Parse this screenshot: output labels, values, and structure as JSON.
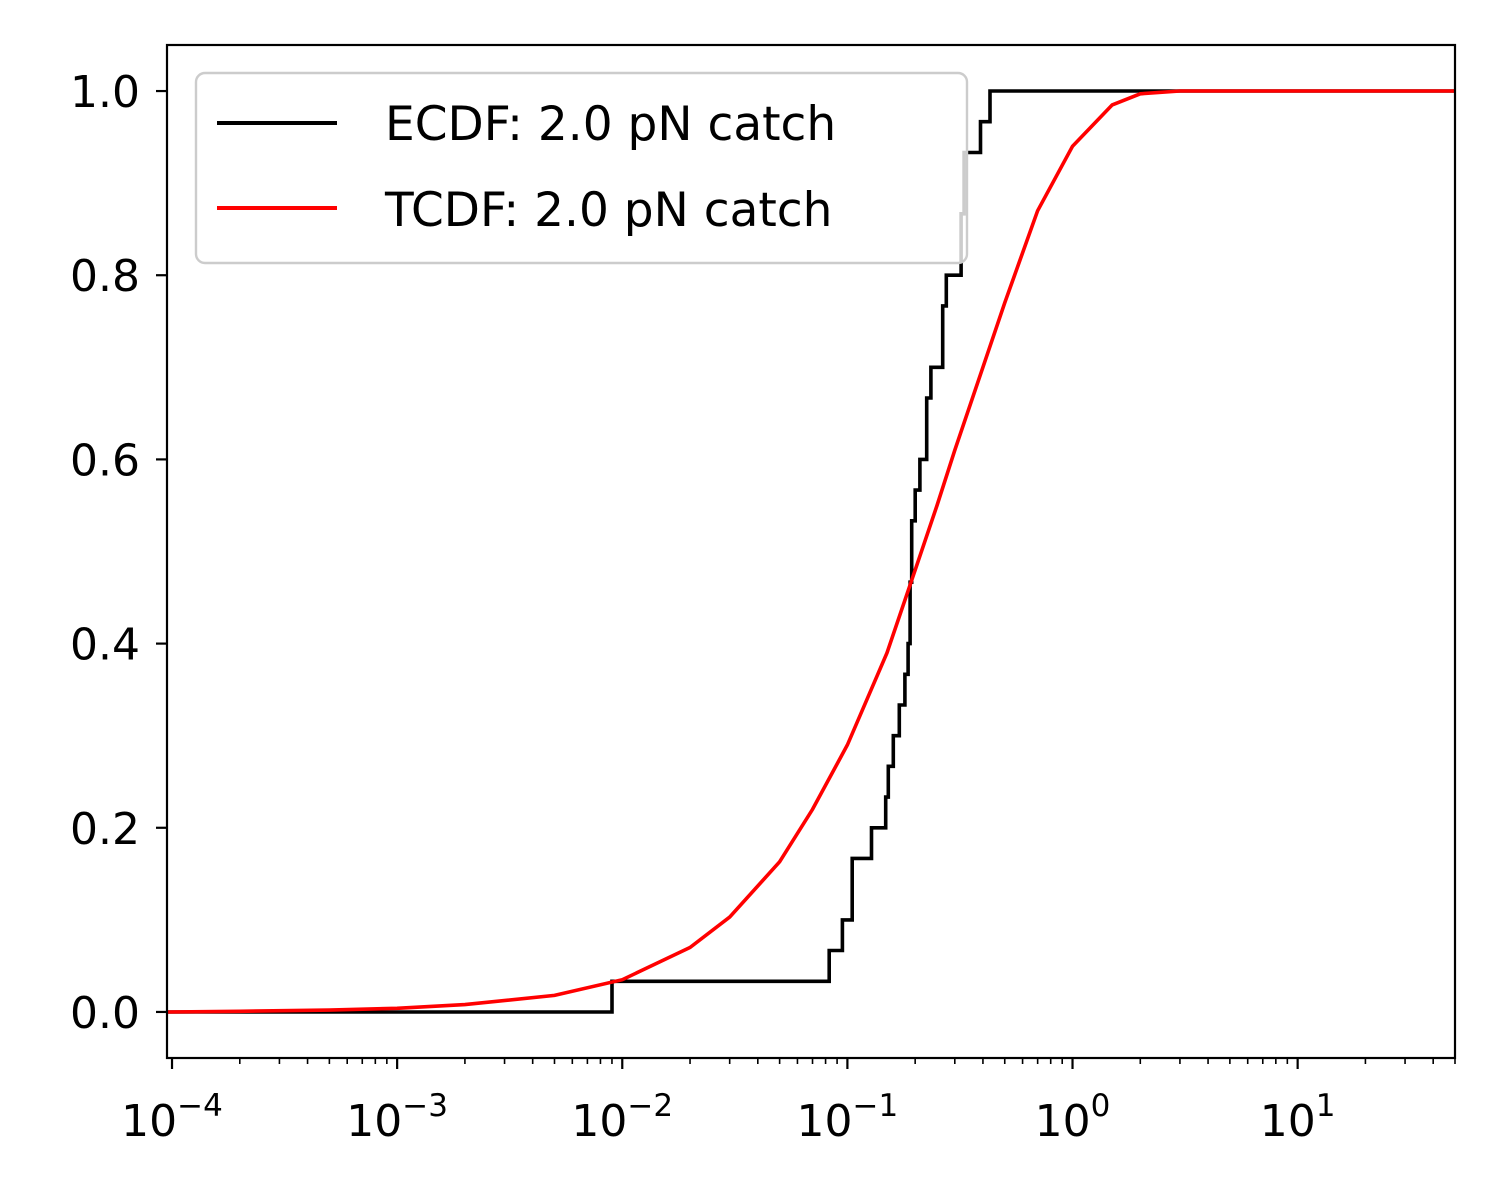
{
  "chart_data": {
    "type": "line",
    "xscale": "log",
    "xlim": [
      9.5e-05,
      50
    ],
    "ylim": [
      -0.05,
      1.05
    ],
    "x_ticks": [
      {
        "value": 0.0001,
        "base": "10",
        "exp": "−4"
      },
      {
        "value": 0.001,
        "base": "10",
        "exp": "−3"
      },
      {
        "value": 0.01,
        "base": "10",
        "exp": "−2"
      },
      {
        "value": 0.1,
        "base": "10",
        "exp": "−1"
      },
      {
        "value": 1,
        "base": "10",
        "exp": "0"
      },
      {
        "value": 10,
        "base": "10",
        "exp": "1"
      }
    ],
    "y_ticks": [
      {
        "value": 0.0,
        "label": "0.0"
      },
      {
        "value": 0.2,
        "label": "0.2"
      },
      {
        "value": 0.4,
        "label": "0.4"
      },
      {
        "value": 0.6,
        "label": "0.6"
      },
      {
        "value": 0.8,
        "label": "0.8"
      },
      {
        "value": 1.0,
        "label": "1.0"
      }
    ],
    "grid": false,
    "legend_position": "upper-left",
    "series": [
      {
        "name": "ECDF: 2.0 pN catch",
        "style": "step",
        "color": "#000000",
        "x": [
          9.5e-05,
          0.009,
          0.009,
          0.083,
          0.083,
          0.095,
          0.095,
          0.105,
          0.105,
          0.128,
          0.128,
          0.148,
          0.148,
          0.152,
          0.152,
          0.16,
          0.16,
          0.17,
          0.17,
          0.18,
          0.18,
          0.186,
          0.186,
          0.19,
          0.19,
          0.193,
          0.193,
          0.2,
          0.2,
          0.21,
          0.21,
          0.225,
          0.225,
          0.235,
          0.235,
          0.265,
          0.265,
          0.275,
          0.275,
          0.32,
          0.32,
          0.33,
          0.33,
          0.39,
          0.39,
          0.43,
          0.43,
          50
        ],
        "y": [
          0.0,
          0.0,
          0.0333,
          0.0333,
          0.0667,
          0.0667,
          0.1,
          0.1,
          0.1667,
          0.1667,
          0.2,
          0.2,
          0.2333,
          0.2333,
          0.2667,
          0.2667,
          0.3,
          0.3,
          0.3333,
          0.3333,
          0.3667,
          0.3667,
          0.4,
          0.4,
          0.4667,
          0.4667,
          0.5333,
          0.5333,
          0.5667,
          0.5667,
          0.6,
          0.6,
          0.6667,
          0.6667,
          0.7,
          0.7,
          0.7667,
          0.7667,
          0.8,
          0.8,
          0.8667,
          0.8667,
          0.9333,
          0.9333,
          0.9667,
          0.9667,
          1.0,
          1.0
        ]
      },
      {
        "name": "TCDF: 2.0 pN catch",
        "style": "line",
        "color": "#ff0000",
        "x": [
          9.5e-05,
          0.0002,
          0.0005,
          0.001,
          0.002,
          0.005,
          0.01,
          0.02,
          0.03,
          0.05,
          0.07,
          0.1,
          0.15,
          0.2,
          0.25,
          0.3,
          0.4,
          0.5,
          0.7,
          1.0,
          1.5,
          2.0,
          3.0,
          5.0,
          10,
          50
        ],
        "y": [
          0.0,
          0.0007,
          0.002,
          0.004,
          0.008,
          0.018,
          0.035,
          0.07,
          0.103,
          0.163,
          0.22,
          0.29,
          0.39,
          0.48,
          0.55,
          0.61,
          0.7,
          0.77,
          0.87,
          0.94,
          0.985,
          0.997,
          1.0,
          1.0,
          1.0,
          1.0
        ]
      }
    ]
  }
}
